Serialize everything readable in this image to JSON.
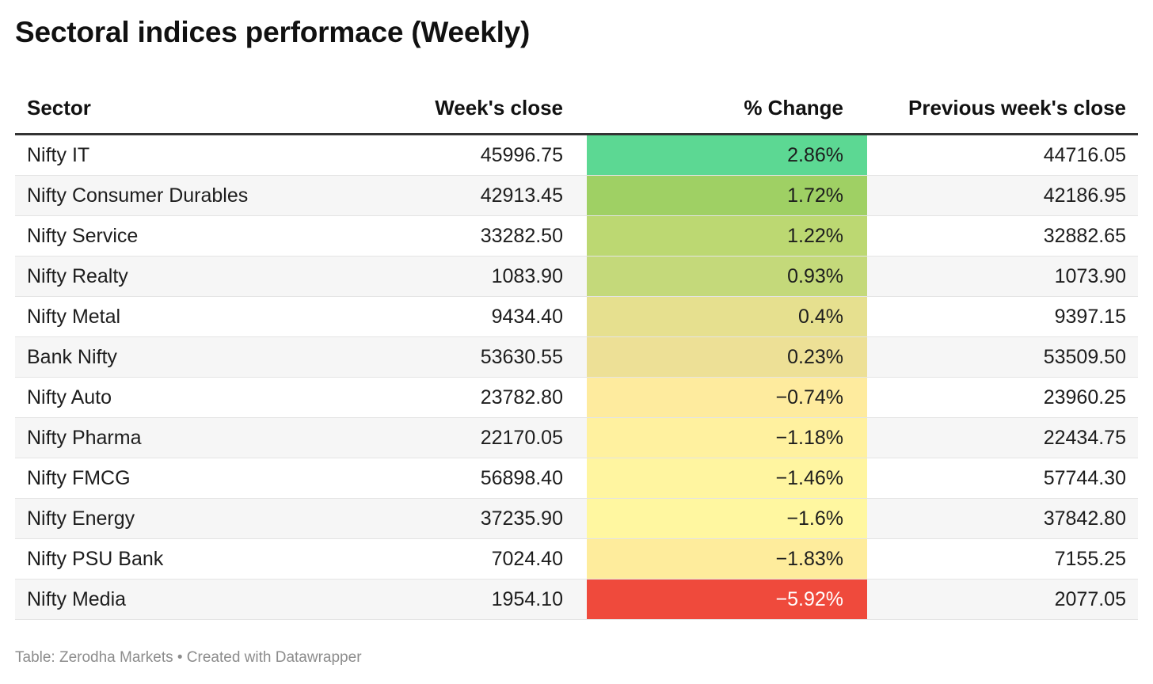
{
  "title": "Sectoral indices performace (Weekly)",
  "footer": "Table: Zerodha Markets • Created with Datawrapper",
  "chart_data": {
    "type": "table",
    "columns": [
      "Sector",
      "Week's close",
      "% Change",
      "Previous week's close"
    ],
    "rows": [
      {
        "sector": "Nifty IT",
        "close": "45996.75",
        "change": "2.86%",
        "prev": "44716.05",
        "color": "#5cd893",
        "text_color": "#1d1d1d"
      },
      {
        "sector": "Nifty Consumer Durables",
        "close": "42913.45",
        "change": "1.72%",
        "prev": "42186.95",
        "color": "#9fd064",
        "text_color": "#1d1d1d"
      },
      {
        "sector": "Nifty Service",
        "close": "33282.50",
        "change": "1.22%",
        "prev": "32882.65",
        "color": "#bcd872",
        "text_color": "#1d1d1d"
      },
      {
        "sector": "Nifty Realty",
        "close": "1083.90",
        "change": "0.93%",
        "prev": "1073.90",
        "color": "#c4d97a",
        "text_color": "#1d1d1d"
      },
      {
        "sector": "Nifty Metal",
        "close": "9434.40",
        "change": "0.4%",
        "prev": "9397.15",
        "color": "#e6e08f",
        "text_color": "#1d1d1d"
      },
      {
        "sector": "Bank Nifty",
        "close": "53630.55",
        "change": "0.23%",
        "prev": "53509.50",
        "color": "#ede096",
        "text_color": "#1d1d1d"
      },
      {
        "sector": "Nifty Auto",
        "close": "23782.80",
        "change": "−0.74%",
        "prev": "23960.25",
        "color": "#feeb9e",
        "text_color": "#1d1d1d"
      },
      {
        "sector": "Nifty Pharma",
        "close": "22170.05",
        "change": "−1.18%",
        "prev": "22434.75",
        "color": "#fff19f",
        "text_color": "#1d1d1d"
      },
      {
        "sector": "Nifty FMCG",
        "close": "56898.40",
        "change": "−1.46%",
        "prev": "57744.30",
        "color": "#fff5a0",
        "text_color": "#1d1d1d"
      },
      {
        "sector": "Nifty Energy",
        "close": "37235.90",
        "change": "−1.6%",
        "prev": "37842.80",
        "color": "#fff7a0",
        "text_color": "#1d1d1d"
      },
      {
        "sector": "Nifty PSU Bank",
        "close": "7024.40",
        "change": "−1.83%",
        "prev": "7155.25",
        "color": "#feec9c",
        "text_color": "#1d1d1d"
      },
      {
        "sector": "Nifty Media",
        "close": "1954.10",
        "change": "−5.92%",
        "prev": "2077.05",
        "color": "#ef4a3c",
        "text_color": "#ffffff"
      }
    ]
  }
}
